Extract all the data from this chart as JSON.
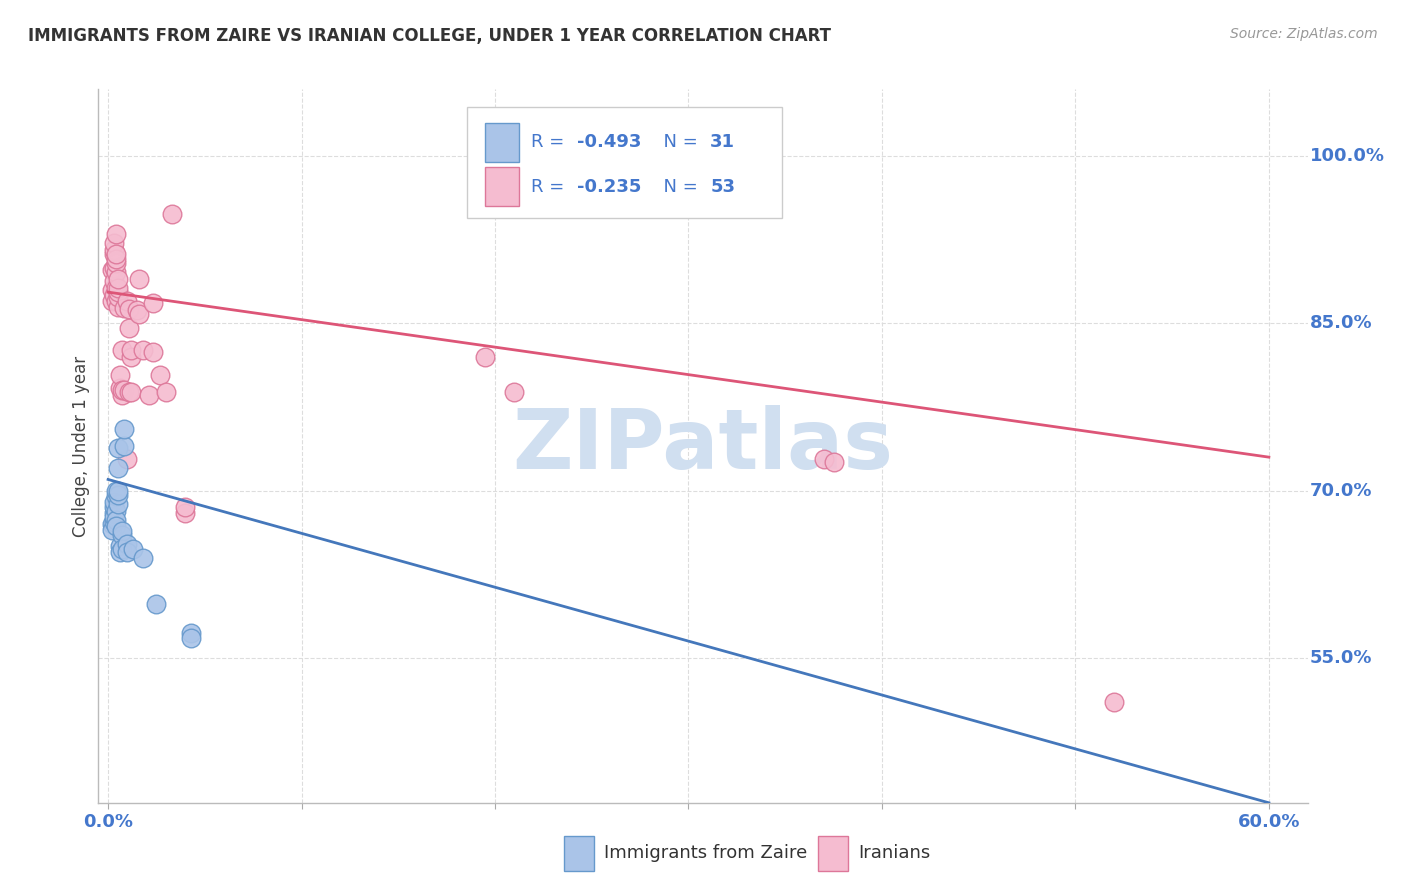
{
  "title": "IMMIGRANTS FROM ZAIRE VS IRANIAN COLLEGE, UNDER 1 YEAR CORRELATION CHART",
  "source": "Source: ZipAtlas.com",
  "ylabel": "College, Under 1 year",
  "legend_blue_r": "-0.493",
  "legend_blue_n": "31",
  "legend_pink_r": "-0.235",
  "legend_pink_n": "53",
  "blue_scatter_color": "#aac4e8",
  "blue_edge_color": "#6699cc",
  "pink_scatter_color": "#f5bcd0",
  "pink_edge_color": "#dd7799",
  "blue_line_color": "#4477bb",
  "pink_line_color": "#dd5577",
  "text_blue": "#4477cc",
  "watermark": "ZIPatlas",
  "watermark_color": "#d0dff0",
  "blue_points": [
    [
      0.002,
      0.67
    ],
    [
      0.002,
      0.665
    ],
    [
      0.003,
      0.672
    ],
    [
      0.003,
      0.68
    ],
    [
      0.003,
      0.685
    ],
    [
      0.003,
      0.676
    ],
    [
      0.003,
      0.69
    ],
    [
      0.004,
      0.682
    ],
    [
      0.004,
      0.674
    ],
    [
      0.004,
      0.668
    ],
    [
      0.004,
      0.695
    ],
    [
      0.004,
      0.7
    ],
    [
      0.005,
      0.688
    ],
    [
      0.005,
      0.696
    ],
    [
      0.005,
      0.7
    ],
    [
      0.005,
      0.72
    ],
    [
      0.005,
      0.738
    ],
    [
      0.006,
      0.65
    ],
    [
      0.006,
      0.645
    ],
    [
      0.007,
      0.66
    ],
    [
      0.007,
      0.664
    ],
    [
      0.007,
      0.648
    ],
    [
      0.008,
      0.74
    ],
    [
      0.008,
      0.755
    ],
    [
      0.01,
      0.652
    ],
    [
      0.01,
      0.645
    ],
    [
      0.013,
      0.648
    ],
    [
      0.018,
      0.64
    ],
    [
      0.025,
      0.598
    ],
    [
      0.043,
      0.572
    ],
    [
      0.043,
      0.568
    ]
  ],
  "pink_points": [
    [
      0.002,
      0.87
    ],
    [
      0.002,
      0.88
    ],
    [
      0.002,
      0.898
    ],
    [
      0.003,
      0.875
    ],
    [
      0.003,
      0.888
    ],
    [
      0.003,
      0.9
    ],
    [
      0.003,
      0.912
    ],
    [
      0.003,
      0.916
    ],
    [
      0.003,
      0.922
    ],
    [
      0.004,
      0.87
    ],
    [
      0.004,
      0.882
    ],
    [
      0.004,
      0.896
    ],
    [
      0.004,
      0.904
    ],
    [
      0.004,
      0.908
    ],
    [
      0.004,
      0.912
    ],
    [
      0.004,
      0.93
    ],
    [
      0.005,
      0.865
    ],
    [
      0.005,
      0.874
    ],
    [
      0.005,
      0.878
    ],
    [
      0.005,
      0.882
    ],
    [
      0.005,
      0.89
    ],
    [
      0.006,
      0.792
    ],
    [
      0.006,
      0.804
    ],
    [
      0.007,
      0.786
    ],
    [
      0.007,
      0.79
    ],
    [
      0.007,
      0.826
    ],
    [
      0.008,
      0.79
    ],
    [
      0.008,
      0.864
    ],
    [
      0.01,
      0.728
    ],
    [
      0.01,
      0.87
    ],
    [
      0.011,
      0.788
    ],
    [
      0.011,
      0.863
    ],
    [
      0.011,
      0.846
    ],
    [
      0.012,
      0.788
    ],
    [
      0.012,
      0.82
    ],
    [
      0.012,
      0.826
    ],
    [
      0.015,
      0.862
    ],
    [
      0.016,
      0.858
    ],
    [
      0.016,
      0.89
    ],
    [
      0.018,
      0.826
    ],
    [
      0.021,
      0.786
    ],
    [
      0.023,
      0.824
    ],
    [
      0.023,
      0.868
    ],
    [
      0.027,
      0.804
    ],
    [
      0.03,
      0.788
    ],
    [
      0.033,
      0.948
    ],
    [
      0.04,
      0.68
    ],
    [
      0.04,
      0.685
    ],
    [
      0.195,
      0.82
    ],
    [
      0.21,
      0.788
    ],
    [
      0.37,
      0.728
    ],
    [
      0.375,
      0.726
    ],
    [
      0.52,
      0.51
    ]
  ],
  "blue_trendline_x": [
    0.0,
    0.6
  ],
  "blue_trendline_y": [
    0.71,
    0.42
  ],
  "pink_trendline_x": [
    0.0,
    0.6
  ],
  "pink_trendline_y": [
    0.878,
    0.73
  ],
  "xlim": [
    -0.005,
    0.62
  ],
  "ylim": [
    0.42,
    1.06
  ],
  "yticks": [
    0.55,
    0.7,
    0.85,
    1.0
  ],
  "ytick_labels": [
    "55.0%",
    "70.0%",
    "85.0%",
    "100.0%"
  ],
  "xticks": [
    0.0,
    0.1,
    0.2,
    0.3,
    0.4,
    0.5,
    0.6
  ],
  "xtick_labels_show": {
    "0.0": "0.0%",
    "0.6": "60.0%"
  },
  "grid_color": "#dddddd",
  "background_color": "#ffffff"
}
